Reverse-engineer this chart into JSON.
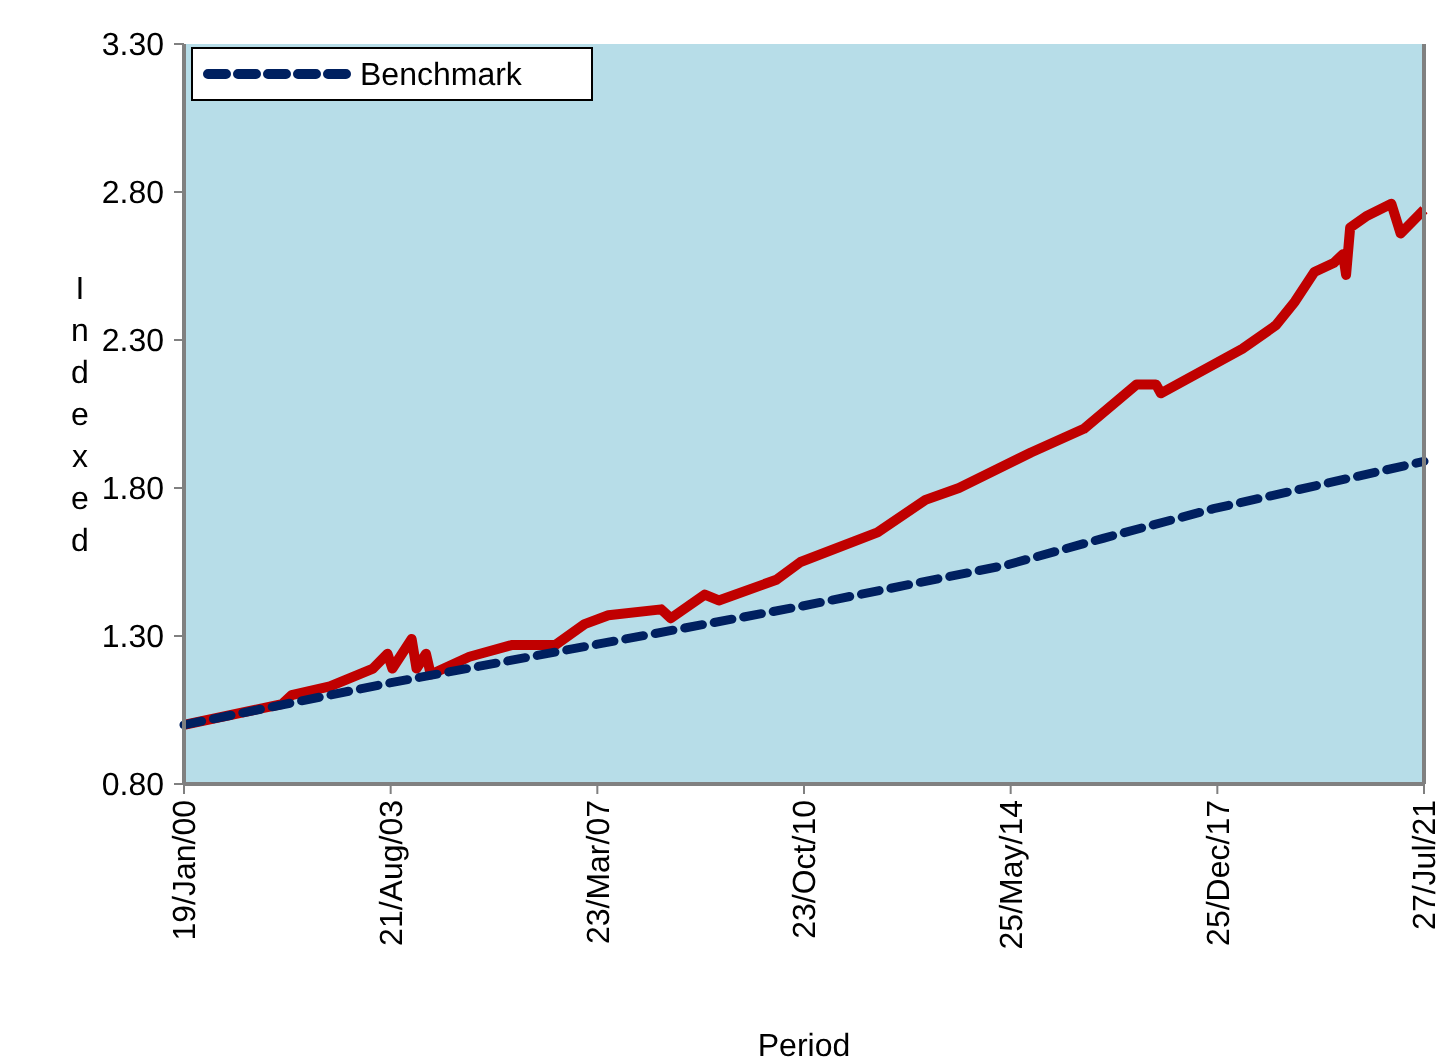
{
  "chart_data": {
    "type": "line",
    "xlabel": "Period",
    "ylabel": "Indexed",
    "xlim": [
      "2000-01-19",
      "2021-07-27"
    ],
    "ylim": [
      0.8,
      3.3
    ],
    "xticks": [
      {
        "value": "2000-01-19",
        "label": "19/Jan/00"
      },
      {
        "value": "2003-08-21",
        "label": "21/Aug/03"
      },
      {
        "value": "2007-03-23",
        "label": "23/Mar/07"
      },
      {
        "value": "2010-10-23",
        "label": "23/Oct/10"
      },
      {
        "value": "2014-05-25",
        "label": "25/May/14"
      },
      {
        "value": "2017-12-25",
        "label": "25/Dec/17"
      },
      {
        "value": "2021-07-27",
        "label": "27/Jul/21"
      }
    ],
    "yticks": [
      {
        "value": 0.8,
        "label": "0.80"
      },
      {
        "value": 1.3,
        "label": "1.30"
      },
      {
        "value": 1.8,
        "label": "1.80"
      },
      {
        "value": 2.3,
        "label": "2.30"
      },
      {
        "value": 2.8,
        "label": "2.80"
      },
      {
        "value": 3.3,
        "label": "3.30"
      }
    ],
    "grid": false,
    "legend": "top left",
    "marker": "none",
    "series": [
      {
        "color": "#c00000",
        "line_style": "solid",
        "x": [
          "2000-01-19",
          "2001-10",
          "2001-12",
          "2002-08",
          "2003-05",
          "2003-08",
          "2003-09",
          "2004-01",
          "2004-02",
          "2004-04",
          "2004-05",
          "2005-01",
          "2005-10",
          "2006-07",
          "2007-01",
          "2007-06",
          "2008-05",
          "2008-07",
          "2009-02",
          "2009-05",
          "2010-05",
          "2010-10",
          "2012-02",
          "2012-12",
          "2013-07",
          "2014-10",
          "2015-09",
          "2016-08",
          "2016-12",
          "2017-01",
          "2018-06",
          "2019-01",
          "2019-05",
          "2019-09",
          "2020-01",
          "2020-03",
          "2020-03-20",
          "2020-04-15",
          "2020-08",
          "2021-01",
          "2021-03",
          "2021-07-27"
        ],
        "values": [
          1.0,
          1.07,
          1.1,
          1.13,
          1.19,
          1.24,
          1.19,
          1.29,
          1.19,
          1.24,
          1.17,
          1.23,
          1.27,
          1.27,
          1.34,
          1.37,
          1.39,
          1.36,
          1.44,
          1.42,
          1.49,
          1.55,
          1.65,
          1.76,
          1.8,
          1.92,
          2.0,
          2.15,
          2.15,
          2.12,
          2.27,
          2.35,
          2.43,
          2.53,
          2.56,
          2.59,
          2.52,
          2.68,
          2.72,
          2.76,
          2.66,
          2.74
        ]
      },
      {
        "name": "Benchmark",
        "color": "#002060",
        "line_style": "dashed",
        "x": [
          "2000-01-19",
          "2003-08",
          "2007-03",
          "2010-10",
          "2014-05",
          "2016-01",
          "2017-12",
          "2021-07-27"
        ],
        "values": [
          1.0,
          1.14,
          1.27,
          1.4,
          1.54,
          1.63,
          1.73,
          1.89
        ]
      }
    ]
  }
}
